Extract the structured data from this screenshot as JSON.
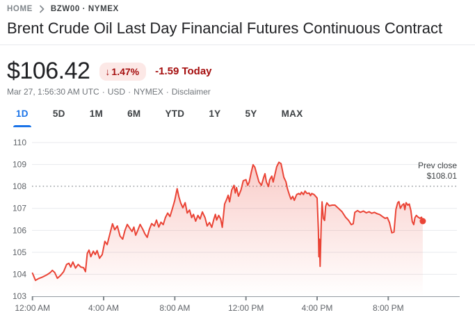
{
  "breadcrumb": {
    "home": "HOME",
    "symbol": "BZW00 · NYMEX"
  },
  "header": {
    "title": "Brent Crude Oil Last Day Financial Futures Continuous Contract"
  },
  "quote": {
    "price": "$106.42",
    "down_arrow": "↓",
    "change_percent": "1.47%",
    "change_today": "-1.59 Today",
    "timestamp": "Mar 27, 1:56:30 AM UTC",
    "currency": "USD",
    "exchange": "NYMEX",
    "disclaimer": "Disclaimer",
    "separator": "·",
    "badge_bg": "#fce8e6",
    "badge_color": "#a50e0e"
  },
  "tabs": [
    {
      "label": "1D",
      "active": true
    },
    {
      "label": "5D",
      "active": false
    },
    {
      "label": "1M",
      "active": false
    },
    {
      "label": "6M",
      "active": false
    },
    {
      "label": "YTD",
      "active": false
    },
    {
      "label": "1Y",
      "active": false
    },
    {
      "label": "5Y",
      "active": false
    },
    {
      "label": "MAX",
      "active": false
    }
  ],
  "chart_data": {
    "type": "area",
    "title": "Brent Crude Oil Last Day Financial Futures — 1D intraday price",
    "xlabel": "",
    "ylabel": "",
    "x_unit": "hours since 12:00 AM local time",
    "xlim": [
      0,
      24
    ],
    "ylim": [
      103,
      110
    ],
    "grid": true,
    "line_color": "#ea4335",
    "grid_color": "#e8eaed",
    "axis_color": "#9aa0a6",
    "tick_color": "#80868b",
    "y_ticks": [
      110,
      109,
      108,
      107,
      106,
      105,
      104,
      103
    ],
    "x_ticks": [
      {
        "t": 0,
        "label": "12:00 AM"
      },
      {
        "t": 4,
        "label": "4:00 AM"
      },
      {
        "t": 8,
        "label": "8:00 AM"
      },
      {
        "t": 12,
        "label": "12:00 PM"
      },
      {
        "t": 16,
        "label": "4:00 PM"
      },
      {
        "t": 20,
        "label": "8:00 PM"
      }
    ],
    "prev_close": {
      "label_line1": "Prev close",
      "label_line2": "$108.01",
      "value": 108.01
    },
    "last_price": 106.42,
    "points": [
      [
        0,
        104.05
      ],
      [
        0.08,
        103.9
      ],
      [
        0.17,
        103.72
      ],
      [
        0.33,
        103.8
      ],
      [
        0.55,
        103.87
      ],
      [
        0.8,
        103.97
      ],
      [
        1.0,
        104.08
      ],
      [
        1.12,
        104.18
      ],
      [
        1.25,
        104.08
      ],
      [
        1.4,
        103.82
      ],
      [
        1.58,
        103.95
      ],
      [
        1.75,
        104.12
      ],
      [
        1.92,
        104.45
      ],
      [
        2.05,
        104.5
      ],
      [
        2.15,
        104.33
      ],
      [
        2.27,
        104.56
      ],
      [
        2.42,
        104.28
      ],
      [
        2.57,
        104.45
      ],
      [
        2.72,
        104.33
      ],
      [
        2.87,
        104.3
      ],
      [
        2.98,
        104.12
      ],
      [
        3.08,
        104.95
      ],
      [
        3.18,
        105.1
      ],
      [
        3.28,
        104.8
      ],
      [
        3.42,
        105.05
      ],
      [
        3.53,
        104.9
      ],
      [
        3.63,
        105.08
      ],
      [
        3.77,
        104.73
      ],
      [
        3.92,
        104.9
      ],
      [
        4.07,
        105.5
      ],
      [
        4.2,
        105.35
      ],
      [
        4.37,
        105.9
      ],
      [
        4.5,
        106.3
      ],
      [
        4.62,
        106.03
      ],
      [
        4.77,
        106.2
      ],
      [
        4.92,
        105.74
      ],
      [
        5.07,
        105.6
      ],
      [
        5.2,
        106.0
      ],
      [
        5.33,
        106.27
      ],
      [
        5.47,
        106.1
      ],
      [
        5.6,
        105.95
      ],
      [
        5.7,
        106.15
      ],
      [
        5.8,
        105.78
      ],
      [
        5.92,
        106.0
      ],
      [
        6.05,
        106.27
      ],
      [
        6.2,
        106.05
      ],
      [
        6.32,
        105.84
      ],
      [
        6.45,
        105.68
      ],
      [
        6.57,
        106.05
      ],
      [
        6.7,
        106.31
      ],
      [
        6.85,
        106.2
      ],
      [
        6.97,
        106.47
      ],
      [
        7.1,
        106.15
      ],
      [
        7.22,
        106.37
      ],
      [
        7.35,
        106.26
      ],
      [
        7.47,
        106.58
      ],
      [
        7.6,
        106.79
      ],
      [
        7.73,
        106.63
      ],
      [
        7.87,
        107.0
      ],
      [
        8.0,
        107.37
      ],
      [
        8.13,
        107.9
      ],
      [
        8.23,
        107.53
      ],
      [
        8.33,
        107.25
      ],
      [
        8.45,
        107.03
      ],
      [
        8.58,
        107.26
      ],
      [
        8.7,
        106.79
      ],
      [
        8.83,
        106.93
      ],
      [
        8.95,
        106.58
      ],
      [
        9.05,
        106.73
      ],
      [
        9.17,
        106.42
      ],
      [
        9.3,
        106.68
      ],
      [
        9.42,
        106.52
      ],
      [
        9.55,
        106.84
      ],
      [
        9.7,
        106.58
      ],
      [
        9.82,
        106.2
      ],
      [
        9.95,
        106.36
      ],
      [
        10.08,
        106.14
      ],
      [
        10.2,
        106.52
      ],
      [
        10.28,
        106.73
      ],
      [
        10.35,
        106.47
      ],
      [
        10.47,
        106.68
      ],
      [
        10.58,
        106.52
      ],
      [
        10.67,
        106.14
      ],
      [
        10.8,
        107.2
      ],
      [
        10.92,
        107.42
      ],
      [
        11.0,
        107.6
      ],
      [
        11.08,
        107.3
      ],
      [
        11.2,
        107.84
      ],
      [
        11.33,
        108.05
      ],
      [
        11.4,
        107.7
      ],
      [
        11.47,
        107.95
      ],
      [
        11.58,
        107.56
      ],
      [
        11.72,
        107.84
      ],
      [
        11.85,
        108.26
      ],
      [
        12.0,
        108.31
      ],
      [
        12.1,
        108.05
      ],
      [
        12.18,
        108.2
      ],
      [
        12.3,
        108.65
      ],
      [
        12.4,
        108.99
      ],
      [
        12.5,
        108.88
      ],
      [
        12.6,
        108.58
      ],
      [
        12.73,
        108.21
      ],
      [
        12.87,
        108.05
      ],
      [
        13.0,
        108.42
      ],
      [
        13.07,
        108.58
      ],
      [
        13.15,
        108.2
      ],
      [
        13.27,
        108.0
      ],
      [
        13.33,
        108.3
      ],
      [
        13.45,
        108.47
      ],
      [
        13.53,
        108.2
      ],
      [
        13.65,
        108.63
      ],
      [
        13.73,
        108.9
      ],
      [
        13.85,
        109.1
      ],
      [
        13.97,
        109.04
      ],
      [
        14.05,
        108.73
      ],
      [
        14.13,
        108.42
      ],
      [
        14.25,
        108.21
      ],
      [
        14.33,
        107.9
      ],
      [
        14.45,
        107.6
      ],
      [
        14.53,
        107.42
      ],
      [
        14.63,
        107.55
      ],
      [
        14.72,
        107.37
      ],
      [
        14.85,
        107.63
      ],
      [
        14.97,
        107.68
      ],
      [
        15.05,
        107.63
      ],
      [
        15.12,
        107.74
      ],
      [
        15.23,
        107.63
      ],
      [
        15.32,
        107.79
      ],
      [
        15.43,
        107.68
      ],
      [
        15.55,
        107.7
      ],
      [
        15.63,
        107.58
      ],
      [
        15.7,
        107.68
      ],
      [
        15.83,
        107.63
      ],
      [
        15.95,
        107.52
      ],
      [
        16.0,
        107.47
      ],
      [
        16.07,
        106.0
      ],
      [
        16.1,
        104.8
      ],
      [
        16.13,
        105.6
      ],
      [
        16.17,
        104.36
      ],
      [
        16.23,
        106.3
      ],
      [
        16.28,
        107.3
      ],
      [
        16.35,
        106.55
      ],
      [
        16.42,
        106.45
      ],
      [
        16.48,
        107.1
      ],
      [
        16.55,
        107.25
      ],
      [
        16.68,
        107.12
      ],
      [
        16.85,
        107.15
      ],
      [
        17.0,
        107.15
      ],
      [
        17.2,
        107.0
      ],
      [
        17.4,
        106.85
      ],
      [
        17.6,
        106.6
      ],
      [
        17.77,
        106.45
      ],
      [
        17.92,
        106.26
      ],
      [
        18.03,
        106.3
      ],
      [
        18.12,
        106.82
      ],
      [
        18.27,
        106.9
      ],
      [
        18.43,
        106.82
      ],
      [
        18.6,
        106.88
      ],
      [
        18.77,
        106.8
      ],
      [
        18.92,
        106.85
      ],
      [
        19.07,
        106.78
      ],
      [
        19.22,
        106.82
      ],
      [
        19.37,
        106.76
      ],
      [
        19.52,
        106.72
      ],
      [
        19.67,
        106.63
      ],
      [
        19.82,
        106.55
      ],
      [
        19.95,
        106.58
      ],
      [
        20.07,
        106.35
      ],
      [
        20.2,
        105.89
      ],
      [
        20.32,
        105.92
      ],
      [
        20.43,
        106.95
      ],
      [
        20.53,
        107.26
      ],
      [
        20.6,
        107.31
      ],
      [
        20.68,
        107.0
      ],
      [
        20.78,
        107.15
      ],
      [
        20.87,
        107.21
      ],
      [
        20.93,
        106.94
      ],
      [
        21.0,
        107.26
      ],
      [
        21.1,
        107.15
      ],
      [
        21.18,
        107.2
      ],
      [
        21.27,
        106.9
      ],
      [
        21.35,
        106.4
      ],
      [
        21.43,
        106.26
      ],
      [
        21.5,
        106.58
      ],
      [
        21.58,
        106.68
      ],
      [
        21.68,
        106.6
      ],
      [
        21.78,
        106.55
      ],
      [
        21.87,
        106.6
      ],
      [
        21.94,
        106.42
      ]
    ]
  }
}
